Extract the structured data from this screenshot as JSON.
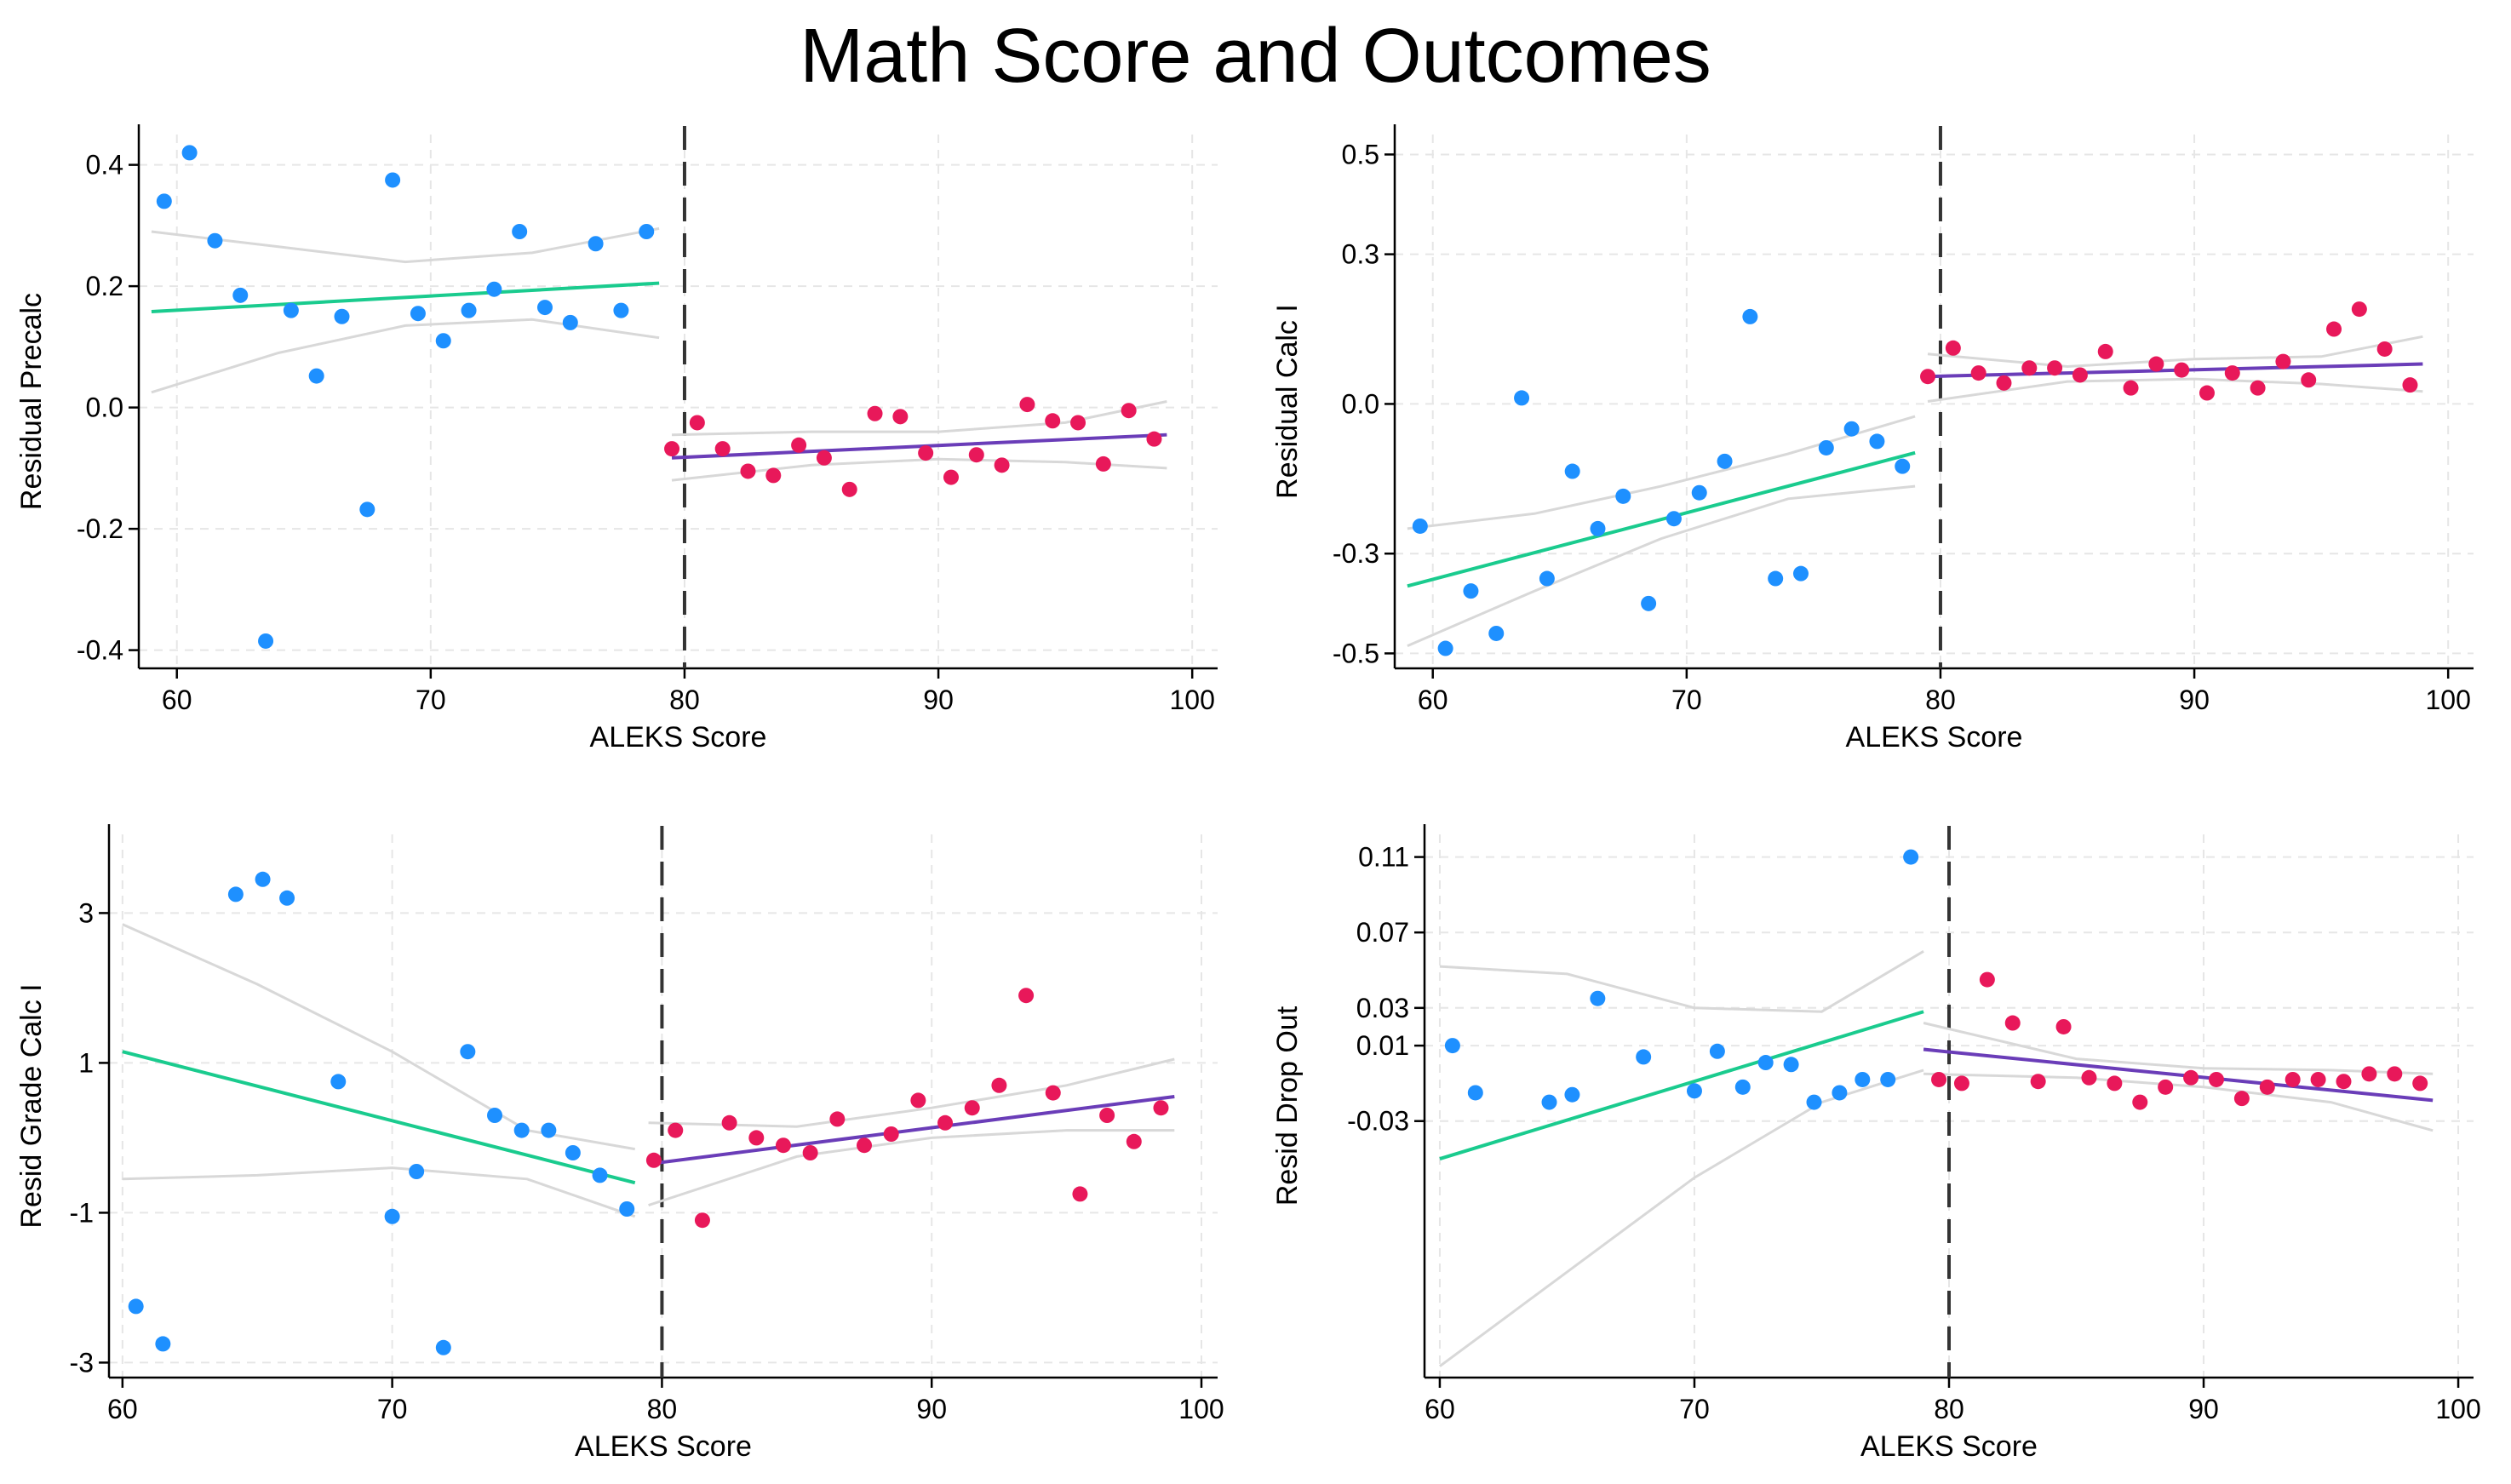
{
  "title": "Math Score and Outcomes",
  "colors": {
    "below_points": "#1E90FF",
    "above_points": "#E8185A",
    "below_fit": "#1ACB8E",
    "above_fit": "#6A3DB8",
    "ci_band": "#D8D8D8",
    "grid": "#E6E6E6",
    "cutoff": "#333333"
  },
  "chart_data": [
    {
      "type": "scatter",
      "ylabel": "Residual Precalc",
      "xlabel": "ALEKS Score",
      "xlim": [
        58.5,
        101
      ],
      "ylim": [
        -0.43,
        0.45
      ],
      "xticks": [
        60,
        70,
        80,
        90,
        100
      ],
      "yticks": [
        -0.4,
        -0.2,
        0.0,
        0.2,
        0.4
      ],
      "ytick_labels": [
        "-0.4",
        "-0.2",
        "0.0",
        "0.2",
        "0.4"
      ],
      "cutoff": 80,
      "below": {
        "x": [
          59.5,
          60.5,
          61.5,
          62.5,
          63.5,
          64.5,
          65.5,
          66.5,
          67.5,
          68.5,
          69.5,
          70.5,
          71.5,
          72.5,
          73.5,
          74.5,
          75.5,
          76.5,
          77.5,
          78.5
        ],
        "y": [
          0.34,
          0.42,
          0.275,
          0.185,
          -0.385,
          0.16,
          0.052,
          0.15,
          -0.168,
          0.375,
          0.155,
          0.11,
          0.16,
          0.195,
          0.29,
          0.165,
          0.14,
          0.27,
          0.16,
          0.29
        ],
        "fit": [
          [
            59,
            0.158
          ],
          [
            79,
            0.205
          ]
        ],
        "ci_lower": [
          [
            59,
            0.025
          ],
          [
            64,
            0.09
          ],
          [
            69,
            0.135
          ],
          [
            74,
            0.145
          ],
          [
            79,
            0.115
          ]
        ],
        "ci_upper": [
          [
            59,
            0.29
          ],
          [
            64,
            0.265
          ],
          [
            69,
            0.24
          ],
          [
            74,
            0.255
          ],
          [
            79,
            0.295
          ]
        ]
      },
      "above": {
        "x": [
          79.5,
          80.5,
          81.5,
          82.5,
          83.5,
          84.5,
          85.5,
          86.5,
          87.5,
          88.5,
          89.5,
          90.5,
          91.5,
          92.5,
          93.5,
          94.5,
          95.5,
          96.5,
          97.5,
          98.5
        ],
        "y": [
          -0.068,
          -0.025,
          -0.068,
          -0.105,
          -0.112,
          -0.062,
          -0.083,
          -0.135,
          -0.01,
          -0.015,
          -0.075,
          -0.115,
          -0.078,
          -0.095,
          0.005,
          -0.022,
          -0.025,
          -0.093,
          -0.005,
          -0.052
        ],
        "fit": [
          [
            79.5,
            -0.083
          ],
          [
            99,
            -0.045
          ]
        ],
        "ci_lower": [
          [
            79.5,
            -0.12
          ],
          [
            85,
            -0.095
          ],
          [
            90,
            -0.085
          ],
          [
            95,
            -0.09
          ],
          [
            99,
            -0.1
          ]
        ],
        "ci_upper": [
          [
            79.5,
            -0.045
          ],
          [
            85,
            -0.04
          ],
          [
            90,
            -0.04
          ],
          [
            95,
            -0.025
          ],
          [
            99,
            0.01
          ]
        ]
      }
    },
    {
      "type": "scatter",
      "ylabel": "Residual Calc I",
      "xlabel": "ALEKS Score",
      "xlim": [
        58.5,
        101
      ],
      "ylim": [
        -0.53,
        0.54
      ],
      "xticks": [
        60,
        70,
        80,
        90,
        100
      ],
      "yticks": [
        -0.5,
        -0.3,
        0.0,
        0.3,
        0.5
      ],
      "ytick_labels": [
        "-0.5",
        "-0.3",
        "0.0",
        "0.3",
        "0.5"
      ],
      "cutoff": 80,
      "below": {
        "x": [
          59.5,
          60.5,
          61.5,
          62.5,
          63.5,
          64.5,
          65.5,
          66.5,
          67.5,
          68.5,
          69.5,
          70.5,
          71.5,
          72.5,
          73.5,
          74.5,
          75.5,
          76.5,
          77.5,
          78.5
        ],
        "y": [
          -0.245,
          -0.49,
          -0.375,
          -0.46,
          0.012,
          -0.35,
          -0.135,
          -0.25,
          -0.185,
          -0.4,
          -0.23,
          -0.178,
          -0.115,
          0.175,
          -0.35,
          -0.34,
          -0.088,
          -0.05,
          -0.075,
          -0.125
        ],
        "fit": [
          [
            59,
            -0.365
          ],
          [
            79,
            -0.098
          ]
        ],
        "ci_lower": [
          [
            59,
            -0.485
          ],
          [
            64,
            -0.375
          ],
          [
            69,
            -0.27
          ],
          [
            74,
            -0.19
          ],
          [
            79,
            -0.165
          ]
        ],
        "ci_upper": [
          [
            59,
            -0.25
          ],
          [
            64,
            -0.22
          ],
          [
            69,
            -0.165
          ],
          [
            74,
            -0.1
          ],
          [
            79,
            -0.025
          ]
        ]
      },
      "above": {
        "x": [
          79.5,
          80.5,
          81.5,
          82.5,
          83.5,
          84.5,
          85.5,
          86.5,
          87.5,
          88.5,
          89.5,
          90.5,
          91.5,
          92.5,
          93.5,
          94.5,
          95.5,
          96.5,
          97.5,
          98.5
        ],
        "y": [
          0.055,
          0.112,
          0.062,
          0.042,
          0.072,
          0.072,
          0.058,
          0.105,
          0.032,
          0.08,
          0.068,
          0.022,
          0.062,
          0.032,
          0.085,
          0.048,
          0.15,
          0.19,
          0.11,
          0.038
        ],
        "fit": [
          [
            79.5,
            0.055
          ],
          [
            99,
            0.08
          ]
        ],
        "ci_lower": [
          [
            79.5,
            0.005
          ],
          [
            85,
            0.045
          ],
          [
            90,
            0.05
          ],
          [
            95,
            0.04
          ],
          [
            99,
            0.025
          ]
        ],
        "ci_upper": [
          [
            79.5,
            0.1
          ],
          [
            85,
            0.075
          ],
          [
            90,
            0.09
          ],
          [
            95,
            0.095
          ],
          [
            99,
            0.135
          ]
        ]
      }
    },
    {
      "type": "scatter",
      "ylabel": "Resid Grade Calc I",
      "xlabel": "ALEKS Score",
      "xlim": [
        59.5,
        100.6
      ],
      "ylim": [
        -3.2,
        4.05
      ],
      "xticks": [
        60,
        70,
        80,
        90,
        100
      ],
      "yticks": [
        -3,
        -1,
        1,
        3
      ],
      "ytick_labels": [
        "-3",
        "-1",
        "1",
        "3"
      ],
      "cutoff": 80,
      "below": {
        "x": [
          60.5,
          61.5,
          64.2,
          65.2,
          66.1,
          68,
          70,
          70.9,
          71.9,
          72.8,
          73.8,
          74.8,
          75.8,
          76.7,
          77.7,
          78.7
        ],
        "y": [
          -2.25,
          -2.75,
          3.25,
          3.45,
          3.2,
          0.75,
          -1.05,
          -0.45,
          -2.8,
          1.15,
          0.3,
          0.1,
          0.1,
          -0.2,
          -0.5,
          -0.95
        ],
        "fit": [
          [
            60,
            1.15
          ],
          [
            79,
            -0.6
          ]
        ],
        "ci_lower": [
          [
            60,
            -0.55
          ],
          [
            65,
            -0.5
          ],
          [
            70,
            -0.4
          ],
          [
            75,
            -0.55
          ],
          [
            79,
            -1.05
          ]
        ],
        "ci_upper": [
          [
            60,
            2.85
          ],
          [
            65,
            2.05
          ],
          [
            70,
            1.15
          ],
          [
            75,
            0.1
          ],
          [
            79,
            -0.15
          ]
        ]
      },
      "above": {
        "x": [
          79.7,
          80.5,
          81.5,
          82.5,
          83.5,
          84.5,
          85.5,
          86.5,
          87.5,
          88.5,
          89.5,
          90.5,
          91.5,
          92.5,
          93.5,
          94.5,
          95.5,
          96.5,
          97.5,
          98.5
        ],
        "y": [
          -0.3,
          0.1,
          -1.1,
          0.2,
          0.0,
          -0.1,
          -0.2,
          0.25,
          -0.1,
          0.05,
          0.5,
          0.2,
          0.4,
          0.7,
          1.9,
          0.6,
          -0.75,
          0.3,
          -0.05,
          0.4
        ],
        "fit": [
          [
            79.5,
            -0.35
          ],
          [
            99,
            0.55
          ]
        ],
        "ci_lower": [
          [
            79.5,
            -0.9
          ],
          [
            85,
            -0.25
          ],
          [
            90,
            0.0
          ],
          [
            95,
            0.1
          ],
          [
            99,
            0.1
          ]
        ],
        "ci_upper": [
          [
            79.5,
            0.2
          ],
          [
            85,
            0.15
          ],
          [
            90,
            0.4
          ],
          [
            95,
            0.7
          ],
          [
            99,
            1.05
          ]
        ]
      }
    },
    {
      "type": "scatter",
      "ylabel": "Resid Drop Out",
      "xlabel": "ALEKS Score",
      "xlim": [
        59.4,
        100.6
      ],
      "ylim": [
        -0.166,
        0.122
      ],
      "xticks": [
        60,
        70,
        80,
        90,
        100
      ],
      "yticks": [
        -0.03,
        0.01,
        0.03,
        0.07,
        0.11
      ],
      "ytick_labels": [
        "-0.03",
        "0.01",
        "0.03",
        "0.07",
        "0.11"
      ],
      "cutoff": 80,
      "below": {
        "x": [
          60.5,
          61.4,
          64.3,
          65.2,
          66.2,
          68,
          70,
          70.9,
          71.9,
          72.8,
          73.8,
          74.7,
          75.7,
          76.6,
          77.6,
          78.5
        ],
        "y": [
          0.01,
          -0.015,
          -0.02,
          -0.016,
          0.035,
          0.004,
          -0.014,
          0.007,
          -0.012,
          0.001,
          0.0,
          -0.02,
          -0.015,
          -0.008,
          -0.008,
          0.11
        ],
        "fit": [
          [
            60,
            -0.05
          ],
          [
            79,
            0.028
          ]
        ],
        "ci_lower": [
          [
            60,
            -0.16
          ],
          [
            65,
            -0.11
          ],
          [
            70,
            -0.06
          ],
          [
            75,
            -0.02
          ],
          [
            79,
            -0.003
          ]
        ],
        "ci_upper": [
          [
            60,
            0.052
          ],
          [
            65,
            0.048
          ],
          [
            70,
            0.03
          ],
          [
            75,
            0.028
          ],
          [
            79,
            0.06
          ]
        ]
      },
      "above": {
        "x": [
          79.6,
          80.5,
          81.5,
          82.5,
          83.5,
          84.5,
          85.5,
          86.5,
          87.5,
          88.5,
          89.5,
          90.5,
          91.5,
          92.5,
          93.5,
          94.5,
          95.5,
          96.5,
          97.5,
          98.5
        ],
        "y": [
          -0.008,
          -0.01,
          0.045,
          0.022,
          -0.009,
          0.02,
          -0.007,
          -0.01,
          -0.02,
          -0.012,
          -0.007,
          -0.008,
          -0.018,
          -0.012,
          -0.008,
          -0.008,
          -0.009,
          -0.005,
          -0.005,
          -0.01
        ],
        "fit": [
          [
            79,
            0.008
          ],
          [
            99,
            -0.019
          ]
        ],
        "ci_lower": [
          [
            79,
            -0.005
          ],
          [
            85,
            -0.007
          ],
          [
            90,
            -0.012
          ],
          [
            95,
            -0.02
          ],
          [
            99,
            -0.035
          ]
        ],
        "ci_upper": [
          [
            79,
            0.022
          ],
          [
            85,
            0.003
          ],
          [
            90,
            -0.002
          ],
          [
            95,
            -0.003
          ],
          [
            99,
            -0.005
          ]
        ]
      }
    }
  ]
}
